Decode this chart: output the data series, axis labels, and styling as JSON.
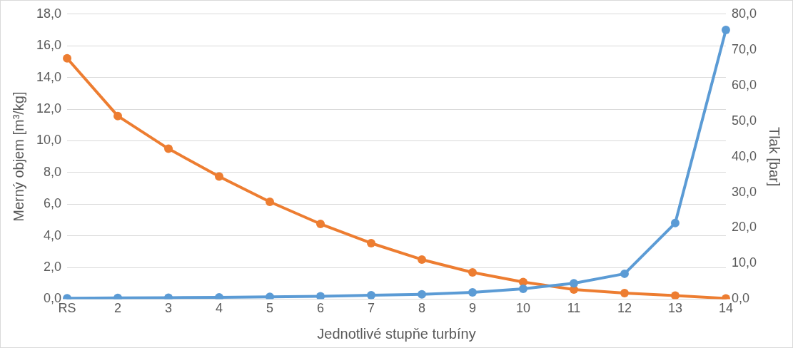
{
  "chart_data": {
    "type": "line",
    "xlabel": "Jednotlivé stupňe turbíny",
    "ylabel": "Merný objem [m³/kg]",
    "y2label": "Tlak [bar]",
    "categories": [
      "RS",
      "2",
      "3",
      "4",
      "5",
      "6",
      "7",
      "8",
      "9",
      "10",
      "11",
      "12",
      "13",
      "14"
    ],
    "series": [
      {
        "color": "#5b9bd5",
        "values": [
          0.05,
          0.07,
          0.09,
          0.11,
          0.14,
          0.18,
          0.24,
          0.3,
          0.42,
          0.65,
          1.0,
          1.6,
          4.8,
          17.0
        ]
      },
      {
        "color": "#ed7d31",
        "axis": "y2",
        "values": [
          67.6,
          51.4,
          42.2,
          34.4,
          27.3,
          21.1,
          15.7,
          11.1,
          7.5,
          4.8,
          2.7,
          1.7,
          1.0,
          0.2
        ]
      }
    ],
    "ylim": [
      0,
      18
    ],
    "yticks": [
      {
        "value": 0,
        "label": "0,0"
      },
      {
        "value": 2,
        "label": "2,0"
      },
      {
        "value": 4,
        "label": "4,0"
      },
      {
        "value": 6,
        "label": "6,0"
      },
      {
        "value": 8,
        "label": "8,0"
      },
      {
        "value": 10,
        "label": "10,0"
      },
      {
        "value": 12,
        "label": "12,0"
      },
      {
        "value": 14,
        "label": "14,0"
      },
      {
        "value": 16,
        "label": "16,0"
      },
      {
        "value": 18,
        "label": "18,0"
      }
    ],
    "y2lim": [
      0,
      80
    ],
    "y2ticks": [
      {
        "value": 0,
        "label": "0,0"
      },
      {
        "value": 10,
        "label": "10,0"
      },
      {
        "value": 20,
        "label": "20,0"
      },
      {
        "value": 30,
        "label": "30,0"
      },
      {
        "value": 40,
        "label": "40,0"
      },
      {
        "value": 50,
        "label": "50,0"
      },
      {
        "value": 60,
        "label": "60,0"
      },
      {
        "value": 70,
        "label": "70,0"
      },
      {
        "value": 80,
        "label": "80,0"
      }
    ],
    "grid": "y",
    "legend": false,
    "marker": "circle",
    "line_style": "solid"
  }
}
